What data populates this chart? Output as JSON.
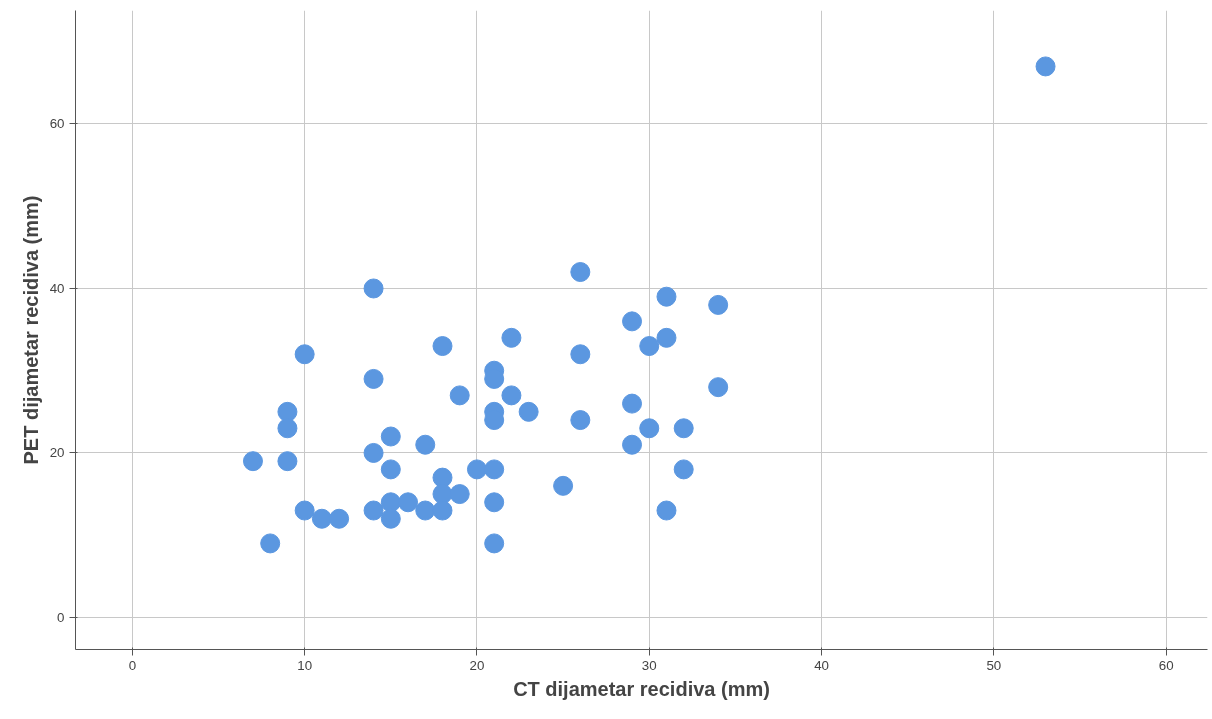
{
  "chart_data": {
    "type": "scatter",
    "xlabel": "CT dijametar recidiva (mm)",
    "ylabel": "PET dijametar recidiva (mm)",
    "x": [
      53,
      26,
      14,
      31,
      34,
      29,
      22,
      31,
      18,
      30,
      10,
      26,
      21,
      21,
      14,
      34,
      19,
      22,
      29,
      9,
      21,
      23,
      21,
      26,
      9,
      30,
      32,
      15,
      17,
      29,
      14,
      7,
      9,
      15,
      20,
      21,
      32,
      18,
      25,
      18,
      19,
      15,
      16,
      21,
      10,
      14,
      17,
      18,
      31,
      11,
      12,
      15,
      8,
      21
    ],
    "series": [
      {
        "color": "#5b97e0",
        "values": [
          67,
          42,
          40,
          39,
          38,
          36,
          34,
          34,
          33,
          33,
          32,
          32,
          30,
          29,
          29,
          28,
          27,
          27,
          26,
          25,
          25,
          25,
          24,
          24,
          23,
          23,
          23,
          22,
          21,
          21,
          20,
          19,
          19,
          18,
          18,
          18,
          18,
          17,
          16,
          15,
          15,
          14,
          14,
          14,
          13,
          13,
          13,
          13,
          13,
          12,
          12,
          12,
          9,
          9
        ]
      }
    ],
    "xlim": [
      -3.3,
      62.4
    ],
    "ylim": [
      -3.9,
      73.8
    ],
    "xticks": [
      0,
      10,
      20,
      30,
      40,
      50,
      60
    ],
    "yticks": [
      0,
      20,
      40,
      60
    ],
    "grid": true,
    "marker": "circle"
  }
}
